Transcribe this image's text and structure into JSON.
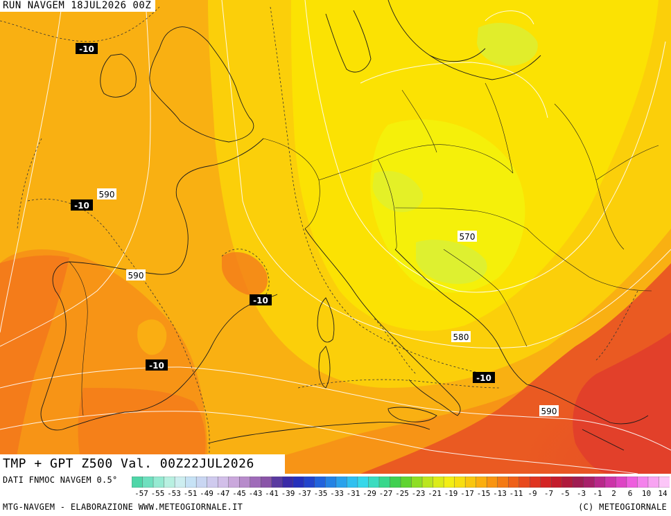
{
  "header": {
    "run_label": "RUN NAVGEM 18JUL2026 00Z"
  },
  "map": {
    "valid_label": "TMP + GPT Z500 Val. 00Z22JUL2026",
    "geopotential_labels": [
      "590",
      "590",
      "570",
      "580",
      "590"
    ],
    "temperature_labels": [
      "-10",
      "-10",
      "-10",
      "-10",
      "-10"
    ],
    "colors": {
      "deep_red": "#e2402a",
      "red_orange": "#ea5a22",
      "orange": "#f47c1a",
      "orange_light": "#f79416",
      "amber": "#f9b012",
      "yellow_orange": "#fbcf0a",
      "yellow": "#fbe203",
      "lemon": "#f5f00a",
      "pale_green": "#d8f03a"
    }
  },
  "legend": {
    "dati": "DATI FNMOC NAVGEM 0.5°",
    "ticks": [
      "-57",
      "-55",
      "-53",
      "-51",
      "-49",
      "-47",
      "-45",
      "-43",
      "-41",
      "-39",
      "-37",
      "-35",
      "-33",
      "-31",
      "-29",
      "-27",
      "-25",
      "-23",
      "-21",
      "-19",
      "-17",
      "-15",
      "-13",
      "-11",
      "-9",
      "-7",
      "-5",
      "-3",
      "-1",
      "2",
      "6",
      "10",
      "14"
    ],
    "swatches": [
      "#4fd6a8",
      "#6fe0bf",
      "#95ead2",
      "#b8f0e1",
      "#cdeef0",
      "#c6e2f5",
      "#c9d6f2",
      "#cfcaee",
      "#d2bfe9",
      "#caa8dc",
      "#b78bcb",
      "#9f6bb9",
      "#8a54a8",
      "#5a3aa0",
      "#3a2aa8",
      "#2630bb",
      "#2244cc",
      "#2163dc",
      "#2483e4",
      "#2aa2ec",
      "#30c0f0",
      "#36d8ea",
      "#3adcc0",
      "#38d88c",
      "#40d050",
      "#60d430",
      "#8ede25",
      "#bbe61e",
      "#dcec18",
      "#f3ee14",
      "#f7de10",
      "#f9c60e",
      "#fbae0e",
      "#f99410",
      "#f47a14",
      "#ef6018",
      "#e8481c",
      "#e03420",
      "#d42424",
      "#c41c2c",
      "#b01a3c",
      "#a01c52",
      "#a8206a",
      "#b8288a",
      "#cc34a8",
      "#de44c4",
      "#ee5ede",
      "#f482ec",
      "#f8a4f2",
      "#fcc6f8"
    ]
  },
  "footer": {
    "left_credit": "MTG-NAVGEM - ELABORAZIONE WWW.METEOGIORNALE.IT",
    "right_credit": "(C) METEOGIORNALE"
  }
}
